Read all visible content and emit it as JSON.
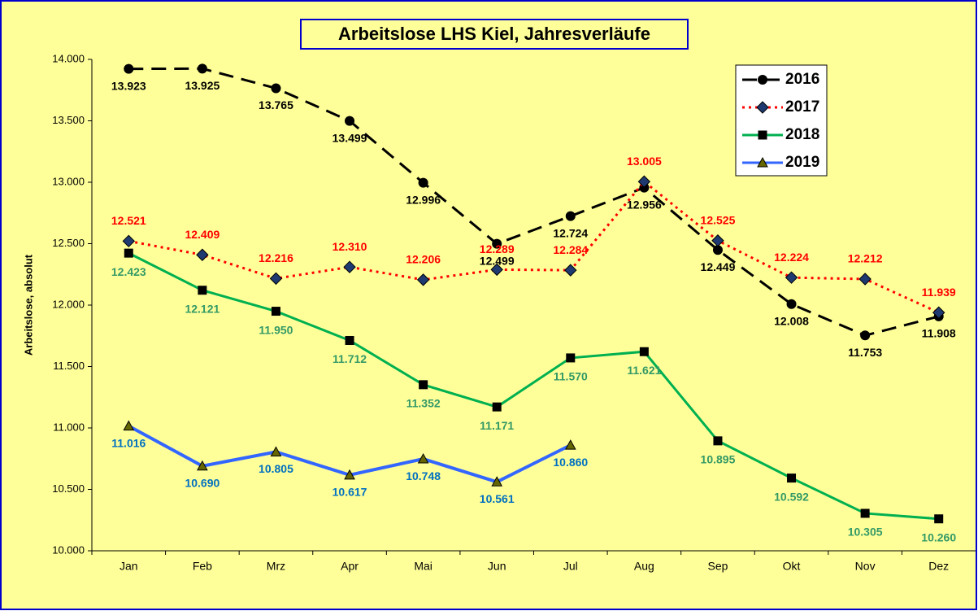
{
  "chart_data": {
    "type": "line",
    "title": "Arbeitslose LHS Kiel, Jahresverläufe",
    "y_label": "Arbeitslose, absolut",
    "categories": [
      "Jan",
      "Feb",
      "Mrz",
      "Apr",
      "Mai",
      "Jun",
      "Jul",
      "Aug",
      "Sep",
      "Okt",
      "Nov",
      "Dez"
    ],
    "ylim": [
      10000,
      14000
    ],
    "yticks": [
      {
        "value": 10000,
        "label": "10.000"
      },
      {
        "value": 10500,
        "label": "10.500"
      },
      {
        "value": 11000,
        "label": "11.000"
      },
      {
        "value": 11500,
        "label": "11.500"
      },
      {
        "value": 12000,
        "label": "12.000"
      },
      {
        "value": 12500,
        "label": "12.500"
      },
      {
        "value": 13000,
        "label": "13.000"
      },
      {
        "value": 13500,
        "label": "13.500"
      },
      {
        "value": 14000,
        "label": "14.000"
      }
    ],
    "legend": "top-right",
    "series": [
      {
        "name": "2016",
        "color": "#000000",
        "label_color": "#000000",
        "dash": "dashed",
        "marker": "circle",
        "values": [
          13923,
          13925,
          13765,
          13499,
          12996,
          12499,
          12724,
          12956,
          12449,
          12008,
          11753,
          11908
        ],
        "value_labels": [
          "13.923",
          "13.925",
          "13.765",
          "13.499",
          "12.996",
          "12.499",
          "12.724",
          "12.956",
          "12.449",
          "12.008",
          "11.753",
          "11.908"
        ]
      },
      {
        "name": "2017",
        "color": "#ff0000",
        "label_color": "#ff0000",
        "dash": "dotted",
        "marker": "diamond",
        "values": [
          12521,
          12409,
          12216,
          12310,
          12206,
          12289,
          12284,
          13005,
          12525,
          12224,
          12212,
          11939
        ],
        "value_labels": [
          "12.521",
          "12.409",
          "12.216",
          "12.310",
          "12.206",
          "12.289",
          "12.284",
          "13.005",
          "12.525",
          "12.224",
          "12.212",
          "11.939"
        ]
      },
      {
        "name": "2018",
        "color": "#00b050",
        "label_color": "#339966",
        "dash": "solid",
        "marker": "square",
        "values": [
          12423,
          12121,
          11950,
          11712,
          11352,
          11171,
          11570,
          11621,
          10895,
          10592,
          10305,
          10260
        ],
        "value_labels": [
          "12.423",
          "12.121",
          "11.950",
          "11.712",
          "11.352",
          "11.171",
          "11.570",
          "11.621",
          "10.895",
          "10.592",
          "10.305",
          "10.260"
        ]
      },
      {
        "name": "2019",
        "color": "#3366ff",
        "label_color": "#0070c0",
        "dash": "solid",
        "marker": "triangle",
        "values": [
          11016,
          10690,
          10805,
          10617,
          10748,
          10561,
          10860,
          null,
          null,
          null,
          null,
          null
        ],
        "value_labels": [
          "11.016",
          "10.690",
          "10.805",
          "10.617",
          "10.748",
          "10.561",
          "10.860",
          null,
          null,
          null,
          null,
          null
        ]
      }
    ]
  }
}
